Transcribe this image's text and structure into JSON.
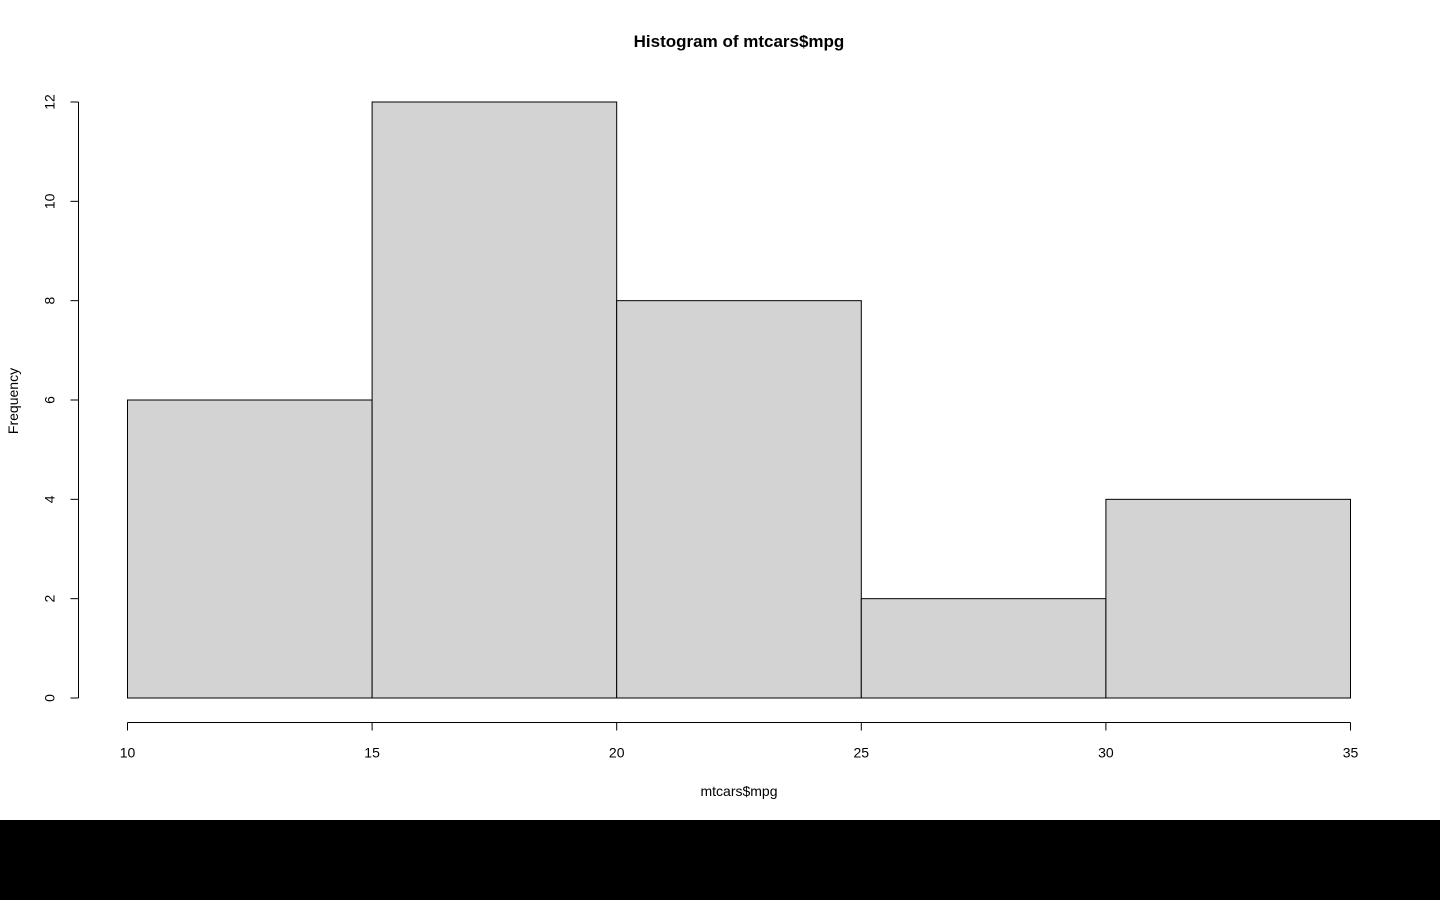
{
  "colors": {
    "background": "#ffffff",
    "bar_fill": "#d3d3d3",
    "bar_stroke": "#000000",
    "bottom_bar": "#000000"
  },
  "chart_data": {
    "type": "bar",
    "title": "Histogram of mtcars$mpg",
    "xlabel": "mtcars$mpg",
    "ylabel": "Frequency",
    "bins": [
      {
        "start": 10,
        "end": 15,
        "count": 6
      },
      {
        "start": 15,
        "end": 20,
        "count": 12
      },
      {
        "start": 20,
        "end": 25,
        "count": 8
      },
      {
        "start": 25,
        "end": 30,
        "count": 2
      },
      {
        "start": 30,
        "end": 35,
        "count": 4
      }
    ],
    "xlim": [
      10,
      35
    ],
    "ylim": [
      0,
      12
    ],
    "xticks": [
      10,
      15,
      20,
      25,
      30,
      35
    ],
    "yticks": [
      0,
      2,
      4,
      6,
      8,
      10,
      12
    ],
    "grid": false,
    "legend": "none"
  }
}
